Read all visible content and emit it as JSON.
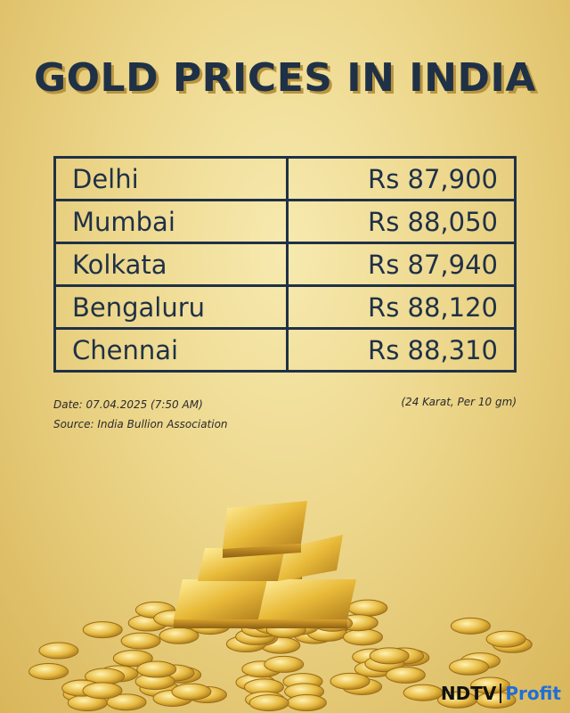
{
  "title": "GOLD PRICES IN INDIA",
  "table": {
    "rows": [
      [
        "Delhi",
        "Rs 87,900"
      ],
      [
        "Mumbai",
        "Rs 88,050"
      ],
      [
        "Kolkata",
        "Rs 87,940"
      ],
      [
        "Bengaluru",
        "Rs 88,120"
      ],
      [
        "Chennai",
        "Rs 88,310"
      ]
    ]
  },
  "notes": {
    "date": "Date: 07.04.2025 (7:50 AM)",
    "source": "Source: India Bullion Association",
    "unit": "(24 Karat, Per 10 gm)"
  },
  "logo": {
    "brand": "NDTV",
    "product": "Profit"
  }
}
